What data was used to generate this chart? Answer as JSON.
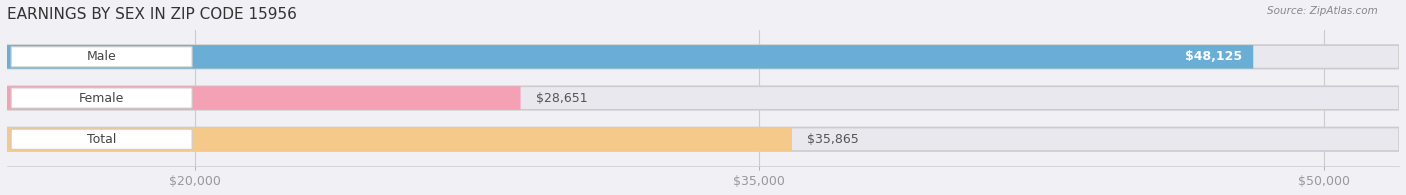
{
  "title": "EARNINGS BY SEX IN ZIP CODE 15956",
  "source": "Source: ZipAtlas.com",
  "categories": [
    "Male",
    "Female",
    "Total"
  ],
  "values": [
    48125,
    28651,
    35865
  ],
  "bar_colors": [
    "#6aaed6",
    "#f4a0b5",
    "#f5c98a"
  ],
  "value_labels": [
    "$48,125",
    "$28,651",
    "$35,865"
  ],
  "value_label_inside": [
    true,
    false,
    false
  ],
  "xlim_min": 15000,
  "xlim_max": 52000,
  "xticks": [
    20000,
    35000,
    50000
  ],
  "xtick_labels": [
    "$20,000",
    "$35,000",
    "$50,000"
  ],
  "background_color": "#f0f0f5",
  "bar_bg_color": "#e8e8ee",
  "badge_color": "#ffffff",
  "bar_height": 0.55,
  "title_fontsize": 11,
  "label_fontsize": 9,
  "tick_fontsize": 9
}
